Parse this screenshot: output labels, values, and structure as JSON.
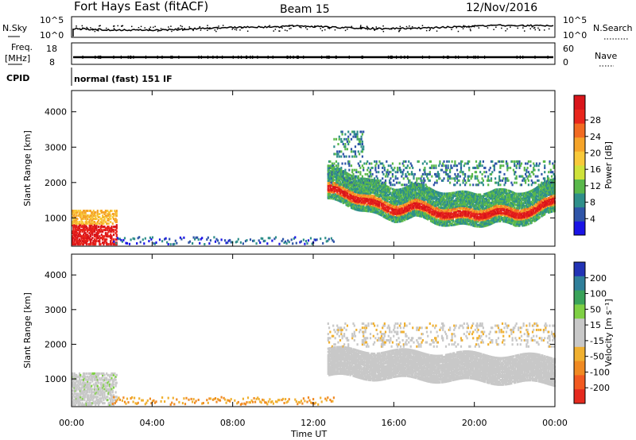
{
  "header": {
    "title": "Fort Hays East (fitACF)",
    "beam": "Beam 15",
    "date": "12/Nov/2016"
  },
  "strip_top": {
    "left_label": "N.Sky",
    "right_label": "N.Search",
    "ticks_left": [
      "10^5",
      "10^0"
    ],
    "ticks_right": [
      "10^5",
      "10^0"
    ]
  },
  "strip_mid": {
    "left_label_1": "Freq.",
    "left_label_2": "[MHz]",
    "right_label": "Nave",
    "ticks_left": [
      "18",
      "8"
    ],
    "ticks_right": [
      "60",
      "0"
    ]
  },
  "cpid": {
    "label": "CPID",
    "value": "normal (fast) 151 IF"
  },
  "chart_data": [
    {
      "type": "heatmap",
      "name": "power",
      "ylabel": "Slant Range [km]",
      "xlabel": "",
      "ylim": [
        200,
        4600
      ],
      "xlim": [
        0,
        24
      ],
      "yticks": [
        "1000",
        "2000",
        "3000",
        "4000"
      ],
      "xtick_labels": [
        "00:00",
        "04:00",
        "08:00",
        "12:00",
        "16:00",
        "20:00",
        "00:00"
      ],
      "colorbar": {
        "label": "Power [dB]",
        "ticks": [
          "4",
          "8",
          "12",
          "16",
          "20",
          "24",
          "28"
        ],
        "colors": [
          "#1a14e6",
          "#2f55a8",
          "#2f8f8a",
          "#5ab84b",
          "#cfe23a",
          "#f8c93a",
          "#f5a42a",
          "#f26b22",
          "#e9261c",
          "#d9151b"
        ]
      },
      "features": [
        {
          "band": "near-range echoes",
          "t_start": 0.0,
          "t_end": 2.2,
          "range_km": [
            200,
            1200
          ],
          "level_db": 24
        },
        {
          "band": "main echo band",
          "center_curve": [
            [
              12.7,
              1800
            ],
            [
              13.5,
              1650
            ],
            [
              14.5,
              1500
            ],
            [
              15.5,
              1250
            ],
            [
              16.0,
              1200
            ],
            [
              17.0,
              1300
            ],
            [
              18.0,
              1150
            ],
            [
              19.0,
              1050
            ],
            [
              20.0,
              1050
            ],
            [
              21.0,
              1150
            ],
            [
              22.0,
              1050
            ],
            [
              23.0,
              1200
            ],
            [
              24.0,
              1450
            ]
          ],
          "level_db": 26
        },
        {
          "band": "upper diffuse echoes",
          "t_start": 12.5,
          "t_end": 24.0,
          "range_km": [
            1400,
            2600
          ],
          "level_db": 10
        }
      ]
    },
    {
      "type": "heatmap",
      "name": "velocity",
      "ylabel": "Slant Range [km]",
      "xlabel": "Time UT",
      "ylim": [
        200,
        4600
      ],
      "xlim": [
        0,
        24
      ],
      "yticks": [
        "1000",
        "2000",
        "3000",
        "4000"
      ],
      "xtick_labels": [
        "00:00",
        "04:00",
        "08:00",
        "12:00",
        "16:00",
        "20:00",
        "00:00"
      ],
      "colorbar": {
        "label": "Velocity [m s⁻¹]",
        "ticks": [
          "200",
          "100",
          "50",
          "15",
          "-15",
          "-50",
          "-100",
          "-200"
        ],
        "colors": [
          "#2233b5",
          "#2f7f9a",
          "#3aa35a",
          "#7fd044",
          "#c8c8c8",
          "#c8c8c8",
          "#f0b030",
          "#f08a22",
          "#f25a20",
          "#e52a1e"
        ]
      },
      "features": [
        {
          "band": "near-range gray",
          "t_start": 0.0,
          "t_end": 2.2,
          "range_km": [
            200,
            1100
          ],
          "velocity": 0
        },
        {
          "band": "ground scatter band",
          "t_start": 12.7,
          "t_end": 24.0,
          "range_km": [
            1000,
            1900
          ],
          "velocity": 0
        },
        {
          "band": "low-range orange",
          "t_start": 2.0,
          "t_end": 13.0,
          "range_km": [
            200,
            450
          ],
          "velocity": -60
        }
      ]
    }
  ]
}
